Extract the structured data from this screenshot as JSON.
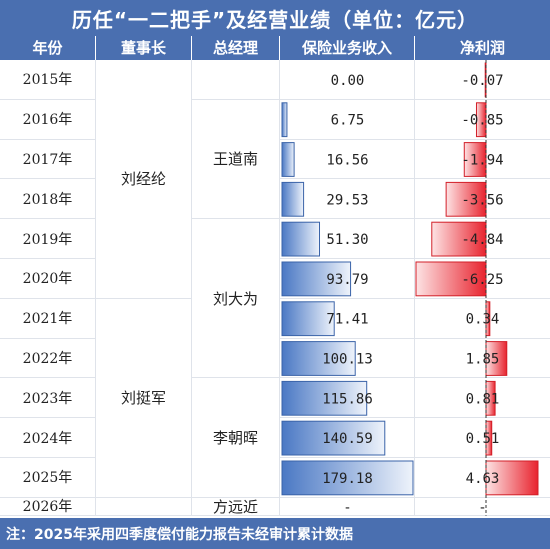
{
  "title": "历任“一二把手”及经营业绩（单位：亿元）",
  "headers": [
    "年份",
    "董事长",
    "总经理",
    "保险业务收入",
    "净利润"
  ],
  "rows": [
    {
      "year": "2015年",
      "income": "0.00",
      "profit": "-0.07"
    },
    {
      "year": "2016年",
      "income": "6.75",
      "profit": "-0.85"
    },
    {
      "year": "2017年",
      "income": "16.56",
      "profit": "-1.94"
    },
    {
      "year": "2018年",
      "income": "29.53",
      "profit": "-3.56"
    },
    {
      "year": "2019年",
      "income": "51.30",
      "profit": "-4.84"
    },
    {
      "year": "2020年",
      "income": "93.79",
      "profit": "-6.25"
    },
    {
      "year": "2021年",
      "income": "71.41",
      "profit": "0.34"
    },
    {
      "year": "2022年",
      "income": "100.13",
      "profit": "1.85"
    },
    {
      "year": "2023年",
      "income": "115.86",
      "profit": "0.81"
    },
    {
      "year": "2024年",
      "income": "140.59",
      "profit": "0.51"
    },
    {
      "year": "2025年",
      "income": "179.18",
      "profit": "4.63"
    },
    {
      "year": "2026年",
      "income": "-",
      "profit": "-"
    }
  ],
  "chairmen": [
    {
      "name": "刘经纶",
      "from": 0,
      "to": 5
    },
    {
      "name": "刘挺军",
      "from": 6,
      "to": 10
    },
    {
      "name": "",
      "from": 11,
      "to": 11
    }
  ],
  "managers": [
    {
      "name": "",
      "from": 0,
      "to": 0
    },
    {
      "name": "王道南",
      "from": 1,
      "to": 3
    },
    {
      "name": "刘大为",
      "from": 4,
      "to": 7
    },
    {
      "name": "李朝晖",
      "from": 8,
      "to": 10
    },
    {
      "name": "方远近",
      "from": 11,
      "to": 11
    }
  ],
  "footer": "注：2025年采用四季度偿付能力报告未经审计累计数据",
  "chart_data": {
    "type": "table",
    "categories": [
      "2015年",
      "2016年",
      "2017年",
      "2018年",
      "2019年",
      "2020年",
      "2021年",
      "2022年",
      "2023年",
      "2024年",
      "2025年",
      "2026年"
    ],
    "series": [
      {
        "name": "保险业务收入",
        "values": [
          0.0,
          6.75,
          16.56,
          29.53,
          51.3,
          93.79,
          71.41,
          100.13,
          115.86,
          140.59,
          179.18,
          null
        ]
      },
      {
        "name": "净利润",
        "values": [
          -0.07,
          -0.85,
          -1.94,
          -3.56,
          -4.84,
          -6.25,
          0.34,
          1.85,
          0.81,
          0.51,
          4.63,
          null
        ]
      }
    ],
    "title": "历任“一二把手”及经营业绩（单位：亿元）",
    "colors": {
      "header": "#4a6fb0",
      "income_bar": "#4a78c4",
      "profit_bar": "#e8232e"
    }
  }
}
